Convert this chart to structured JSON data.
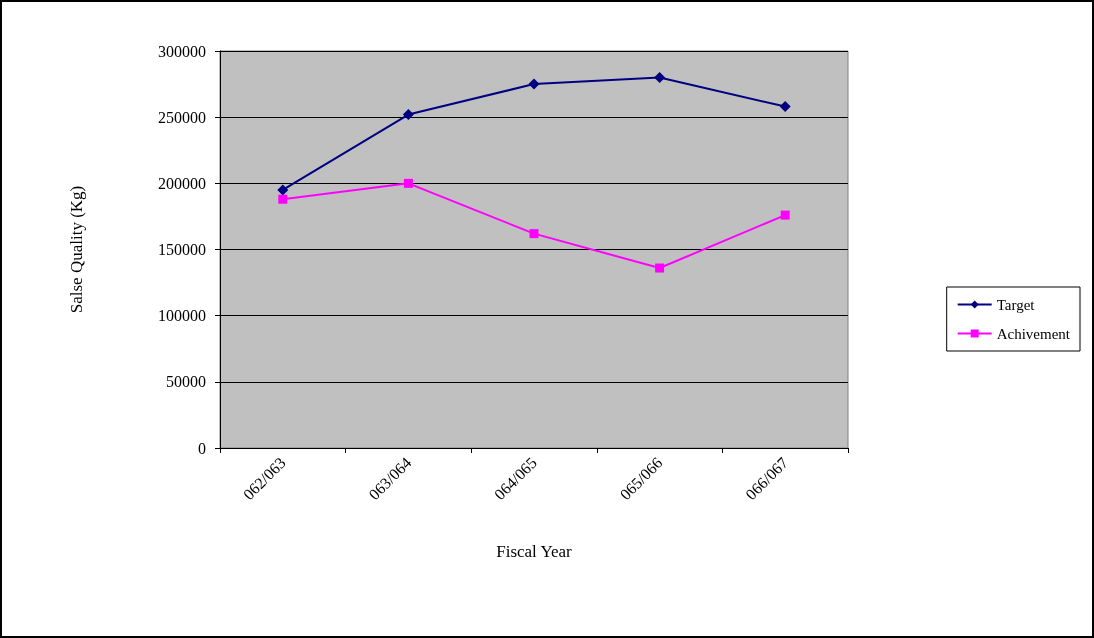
{
  "chart_data": {
    "type": "line",
    "xlabel": "Fiscal Year",
    "ylabel": "Salse Quality (Kg)",
    "categories": [
      "062/063",
      "063/064",
      "064/065",
      "065/066",
      "066/067"
    ],
    "series": [
      {
        "name": "Target",
        "color": "#000080",
        "marker": "diamond",
        "values": [
          195000,
          252000,
          275000,
          280000,
          258000
        ]
      },
      {
        "name": "Achivement",
        "color": "#ff00ff",
        "marker": "square",
        "values": [
          188000,
          200000,
          162000,
          136000,
          176000
        ]
      }
    ],
    "ylim": [
      0,
      300000
    ],
    "yticks": [
      0,
      50000,
      100000,
      150000,
      200000,
      250000,
      300000
    ],
    "grid": "y",
    "legend": "right",
    "line_style": "solid"
  }
}
